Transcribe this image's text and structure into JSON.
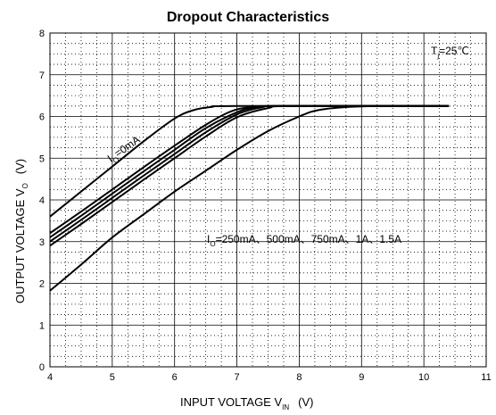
{
  "chart_data": {
    "type": "line",
    "title": "Dropout Characteristics",
    "xlabel": {
      "main": "INPUT VOLTAGE   V",
      "sub": "IN",
      "unit": "(V)"
    },
    "ylabel": {
      "main": "OUTPUT VOLTAGE   V",
      "sub": "O",
      "unit": "(V)"
    },
    "xlim": [
      4,
      11
    ],
    "ylim": [
      0,
      8
    ],
    "xticks": [
      "4",
      "5",
      "6",
      "7",
      "8",
      "9",
      "10",
      "11"
    ],
    "yticks": [
      "0",
      "1",
      "2",
      "3",
      "4",
      "5",
      "6",
      "7",
      "8"
    ],
    "grid": {
      "major": "solid",
      "minor": "dotted"
    },
    "annotations": {
      "temp": {
        "prefix": "T",
        "sub": "j",
        "suffix": "=25℃"
      },
      "io_zero": {
        "prefix": "I",
        "sub": "O",
        "suffix": "=0mA"
      },
      "io_loads": {
        "prefix": "I",
        "sub": "O",
        "suffix": "=250mA、500mA、750mA、1A、1.5A"
      }
    },
    "series": [
      {
        "values": [
          [
            4.0,
            3.6
          ],
          [
            4.5,
            4.2
          ],
          [
            5.0,
            4.8
          ],
          [
            5.5,
            5.4
          ],
          [
            6.0,
            5.95
          ],
          [
            6.3,
            6.15
          ],
          [
            6.6,
            6.23
          ],
          [
            7.0,
            6.25
          ],
          [
            10.4,
            6.25
          ]
        ]
      },
      {
        "values": [
          [
            3.9,
            3.1
          ],
          [
            4.5,
            3.72
          ],
          [
            5.0,
            4.25
          ],
          [
            5.5,
            4.78
          ],
          [
            6.0,
            5.3
          ],
          [
            6.5,
            5.8
          ],
          [
            6.9,
            6.12
          ],
          [
            7.2,
            6.22
          ],
          [
            7.6,
            6.25
          ],
          [
            10.4,
            6.25
          ]
        ]
      },
      {
        "values": [
          [
            3.9,
            3.0
          ],
          [
            4.5,
            3.62
          ],
          [
            5.0,
            4.15
          ],
          [
            5.5,
            4.68
          ],
          [
            6.0,
            5.2
          ],
          [
            6.5,
            5.72
          ],
          [
            7.0,
            6.1
          ],
          [
            7.3,
            6.22
          ],
          [
            7.7,
            6.25
          ],
          [
            10.4,
            6.25
          ]
        ]
      },
      {
        "values": [
          [
            3.9,
            2.9
          ],
          [
            4.5,
            3.52
          ],
          [
            5.0,
            4.05
          ],
          [
            5.5,
            4.58
          ],
          [
            6.0,
            5.1
          ],
          [
            6.5,
            5.62
          ],
          [
            7.0,
            6.05
          ],
          [
            7.4,
            6.22
          ],
          [
            7.8,
            6.25
          ],
          [
            10.4,
            6.25
          ]
        ]
      },
      {
        "values": [
          [
            3.9,
            2.8
          ],
          [
            4.5,
            3.42
          ],
          [
            5.0,
            3.95
          ],
          [
            5.5,
            4.48
          ],
          [
            6.0,
            5.0
          ],
          [
            6.5,
            5.52
          ],
          [
            7.0,
            5.98
          ],
          [
            7.5,
            6.2
          ],
          [
            7.9,
            6.25
          ],
          [
            10.4,
            6.25
          ]
        ]
      },
      {
        "values": [
          [
            3.9,
            1.7
          ],
          [
            4.5,
            2.45
          ],
          [
            5.0,
            3.1
          ],
          [
            5.5,
            3.65
          ],
          [
            6.0,
            4.2
          ],
          [
            6.5,
            4.7
          ],
          [
            7.0,
            5.2
          ],
          [
            7.5,
            5.65
          ],
          [
            8.0,
            6.0
          ],
          [
            8.3,
            6.15
          ],
          [
            8.8,
            6.23
          ],
          [
            9.3,
            6.25
          ],
          [
            10.4,
            6.25
          ]
        ]
      }
    ]
  }
}
